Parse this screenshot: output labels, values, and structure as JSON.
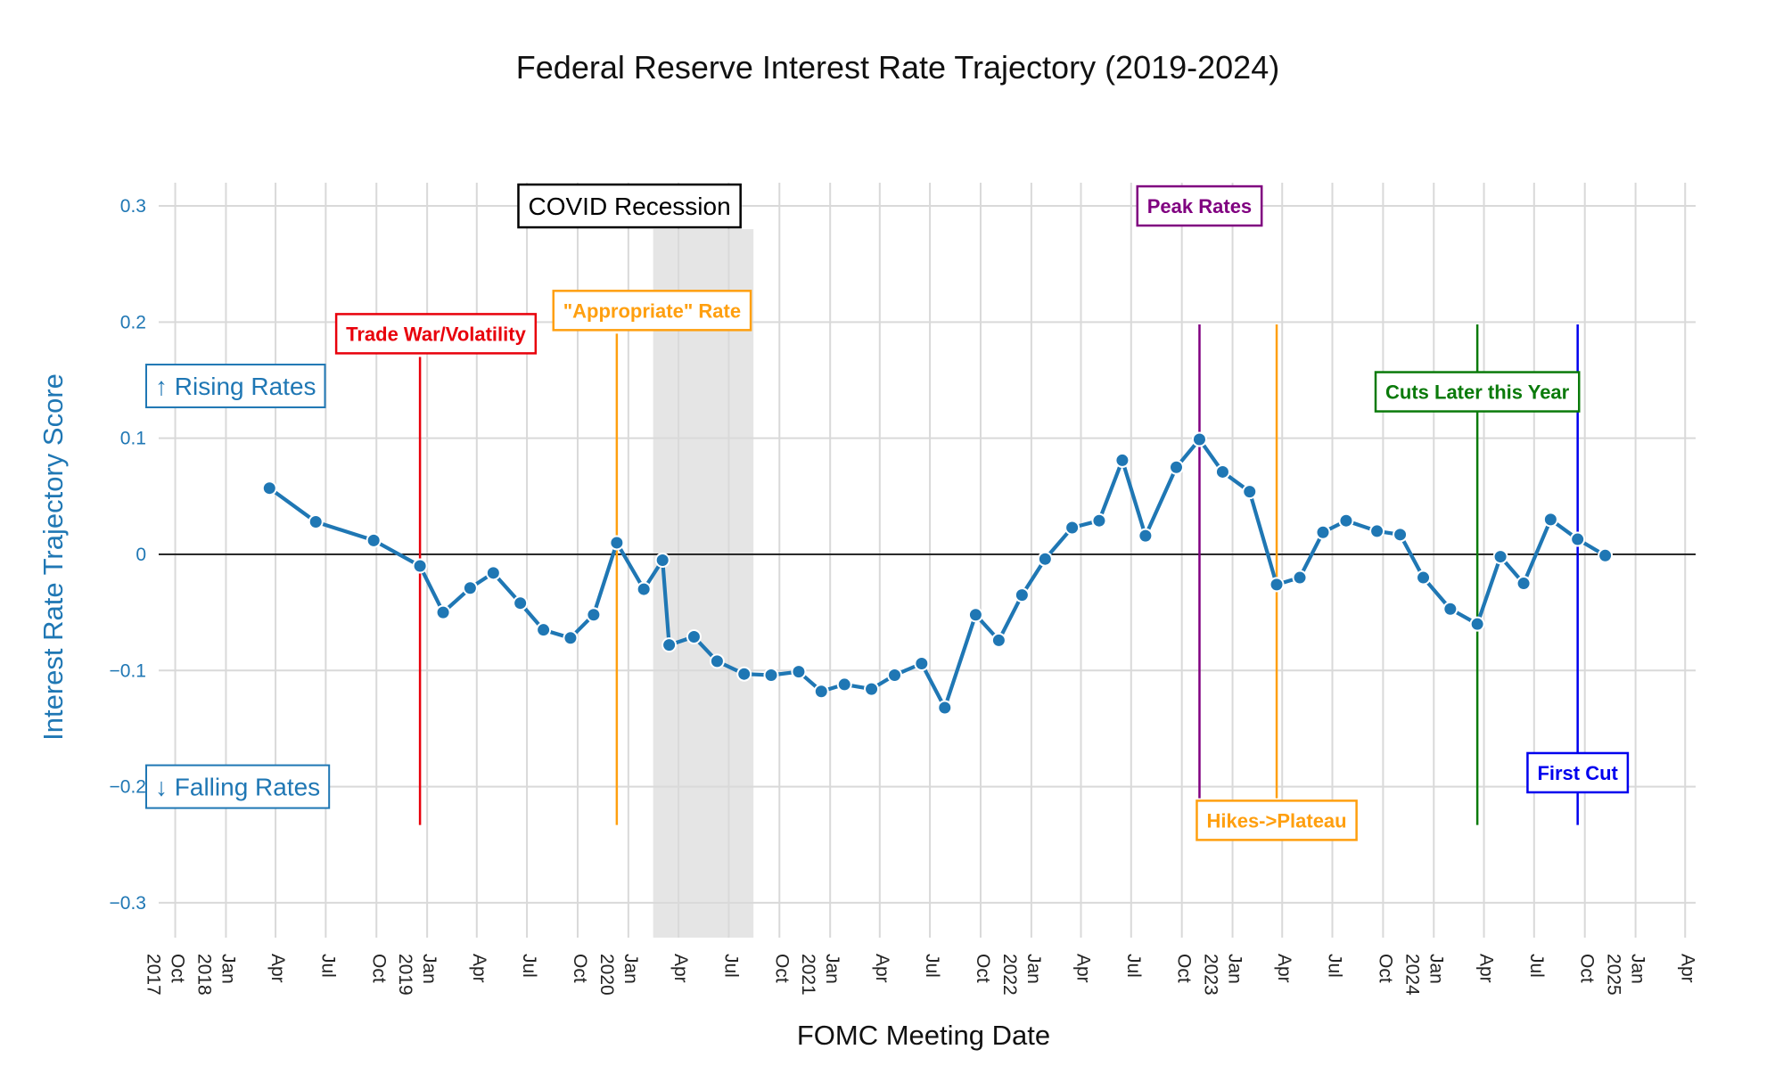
{
  "chart_data": {
    "type": "line",
    "title": "Federal Reserve Interest Rate Trajectory (2019-2024)",
    "xlabel": "FOMC Meeting Date",
    "ylabel": "Interest Rate Trajectory Score",
    "ylim": [
      -0.33,
      0.32
    ],
    "xlim": [
      "2017-09-01",
      "2025-04-20"
    ],
    "grid": true,
    "zero_line": true,
    "y_ticks": [
      {
        "v": 0.3,
        "label": "0.3"
      },
      {
        "v": 0.2,
        "label": "0.2"
      },
      {
        "v": 0.1,
        "label": "0.1"
      },
      {
        "v": 0,
        "label": "0"
      },
      {
        "v": -0.1,
        "label": "−0.1"
      },
      {
        "v": -0.2,
        "label": "−0.2"
      },
      {
        "v": -0.3,
        "label": "−0.3"
      }
    ],
    "x_ticks": [
      {
        "date": "2017-10-01",
        "label": "Oct",
        "year": "2017"
      },
      {
        "date": "2018-01-01",
        "label": "Jan",
        "year": "2018"
      },
      {
        "date": "2018-04-01",
        "label": "Apr"
      },
      {
        "date": "2018-07-01",
        "label": "Jul"
      },
      {
        "date": "2018-10-01",
        "label": "Oct"
      },
      {
        "date": "2019-01-01",
        "label": "Jan",
        "year": "2019"
      },
      {
        "date": "2019-04-01",
        "label": "Apr"
      },
      {
        "date": "2019-07-01",
        "label": "Jul"
      },
      {
        "date": "2019-10-01",
        "label": "Oct"
      },
      {
        "date": "2020-01-01",
        "label": "Jan",
        "year": "2020"
      },
      {
        "date": "2020-04-01",
        "label": "Apr"
      },
      {
        "date": "2020-07-01",
        "label": "Jul"
      },
      {
        "date": "2020-10-01",
        "label": "Oct"
      },
      {
        "date": "2021-01-01",
        "label": "Jan",
        "year": "2021"
      },
      {
        "date": "2021-04-01",
        "label": "Apr"
      },
      {
        "date": "2021-07-01",
        "label": "Jul"
      },
      {
        "date": "2021-10-01",
        "label": "Oct"
      },
      {
        "date": "2022-01-01",
        "label": "Jan",
        "year": "2022"
      },
      {
        "date": "2022-04-01",
        "label": "Apr"
      },
      {
        "date": "2022-07-01",
        "label": "Jul"
      },
      {
        "date": "2022-10-01",
        "label": "Oct"
      },
      {
        "date": "2023-01-01",
        "label": "Jan",
        "year": "2023"
      },
      {
        "date": "2023-04-01",
        "label": "Apr"
      },
      {
        "date": "2023-07-01",
        "label": "Jul"
      },
      {
        "date": "2023-10-01",
        "label": "Oct"
      },
      {
        "date": "2024-01-01",
        "label": "Jan",
        "year": "2024"
      },
      {
        "date": "2024-04-01",
        "label": "Apr"
      },
      {
        "date": "2024-07-01",
        "label": "Jul"
      },
      {
        "date": "2024-10-01",
        "label": "Oct"
      },
      {
        "date": "2025-01-01",
        "label": "Jan",
        "year": "2025"
      },
      {
        "date": "2025-04-01",
        "label": "Apr"
      }
    ],
    "series": [
      {
        "color": "#1f77b4",
        "points": [
          {
            "x": "2018-03-21",
            "y": 0.057
          },
          {
            "x": "2018-06-13",
            "y": 0.028
          },
          {
            "x": "2018-09-26",
            "y": 0.012
          },
          {
            "x": "2018-12-19",
            "y": -0.01
          },
          {
            "x": "2019-01-30",
            "y": -0.05
          },
          {
            "x": "2019-03-20",
            "y": -0.029
          },
          {
            "x": "2019-05-01",
            "y": -0.016
          },
          {
            "x": "2019-06-19",
            "y": -0.042
          },
          {
            "x": "2019-07-31",
            "y": -0.065
          },
          {
            "x": "2019-09-18",
            "y": -0.072
          },
          {
            "x": "2019-10-30",
            "y": -0.052
          },
          {
            "x": "2019-12-11",
            "y": 0.01
          },
          {
            "x": "2020-01-29",
            "y": -0.03
          },
          {
            "x": "2020-03-03",
            "y": -0.005
          },
          {
            "x": "2020-03-15",
            "y": -0.078
          },
          {
            "x": "2020-04-29",
            "y": -0.071
          },
          {
            "x": "2020-06-10",
            "y": -0.092
          },
          {
            "x": "2020-07-29",
            "y": -0.103
          },
          {
            "x": "2020-09-16",
            "y": -0.104
          },
          {
            "x": "2020-11-05",
            "y": -0.101
          },
          {
            "x": "2020-12-16",
            "y": -0.118
          },
          {
            "x": "2021-01-27",
            "y": -0.112
          },
          {
            "x": "2021-03-17",
            "y": -0.116
          },
          {
            "x": "2021-04-28",
            "y": -0.104
          },
          {
            "x": "2021-06-16",
            "y": -0.094
          },
          {
            "x": "2021-07-28",
            "y": -0.132
          },
          {
            "x": "2021-09-22",
            "y": -0.052
          },
          {
            "x": "2021-11-03",
            "y": -0.074
          },
          {
            "x": "2021-12-15",
            "y": -0.035
          },
          {
            "x": "2022-01-26",
            "y": -0.004
          },
          {
            "x": "2022-03-16",
            "y": 0.023
          },
          {
            "x": "2022-05-04",
            "y": 0.029
          },
          {
            "x": "2022-06-15",
            "y": 0.081
          },
          {
            "x": "2022-07-27",
            "y": 0.016
          },
          {
            "x": "2022-09-21",
            "y": 0.075
          },
          {
            "x": "2022-11-02",
            "y": 0.099
          },
          {
            "x": "2022-12-14",
            "y": 0.071
          },
          {
            "x": "2023-02-01",
            "y": 0.054
          },
          {
            "x": "2023-03-22",
            "y": -0.026
          },
          {
            "x": "2023-05-03",
            "y": -0.02
          },
          {
            "x": "2023-06-14",
            "y": 0.019
          },
          {
            "x": "2023-07-26",
            "y": 0.029
          },
          {
            "x": "2023-09-20",
            "y": 0.02
          },
          {
            "x": "2023-11-01",
            "y": 0.017
          },
          {
            "x": "2023-12-13",
            "y": -0.02
          },
          {
            "x": "2024-01-31",
            "y": -0.047
          },
          {
            "x": "2024-03-20",
            "y": -0.06
          },
          {
            "x": "2024-05-01",
            "y": -0.002
          },
          {
            "x": "2024-06-12",
            "y": -0.025
          },
          {
            "x": "2024-07-31",
            "y": 0.03
          },
          {
            "x": "2024-09-18",
            "y": 0.013
          },
          {
            "x": "2024-11-07",
            "y": -0.001
          }
        ]
      }
    ],
    "shaded_regions": [
      {
        "x0": "2020-02-15",
        "x1": "2020-08-15",
        "y0": -0.33,
        "y1": 0.28,
        "color": "#e5e5e5"
      }
    ],
    "annotations": [
      {
        "id": "trade-war",
        "text": "Trade War/Volatility",
        "color": "#e8000b",
        "date": "2018-12-19",
        "line_top": 0.17,
        "line_bottom": -0.233,
        "label_y": 0.19,
        "box_left_date": "2018-07-20"
      },
      {
        "id": "appropriate-rate",
        "text": "\"Appropriate\" Rate",
        "color": "#ff9f0f",
        "date": "2019-12-11",
        "line_top": 0.19,
        "line_bottom": -0.233,
        "label_y": 0.21,
        "box_left_date": "2019-08-18"
      },
      {
        "id": "covid-recession",
        "text": "COVID Recession",
        "color": "#000000",
        "bold": false,
        "label_y": 0.3,
        "box_center_date": "2020-01-03"
      },
      {
        "id": "peak-rates",
        "text": "Peak Rates",
        "color": "#800080",
        "date": "2022-11-02",
        "line_top": 0.198,
        "line_bottom": -0.21,
        "label_y": 0.3,
        "box_center_date": "2022-11-02"
      },
      {
        "id": "hikes-plateau",
        "text": "Hikes->Plateau",
        "color": "#ff9f0f",
        "date": "2023-03-22",
        "line_top": 0.198,
        "line_bottom": -0.21,
        "label_y": -0.229,
        "box_center_date": "2023-03-22"
      },
      {
        "id": "cuts-later",
        "text": "Cuts Later this Year",
        "color": "#0a7a0a",
        "date": "2024-03-20",
        "line_top": 0.198,
        "line_bottom": -0.233,
        "label_y": 0.14,
        "box_center_date": "2024-03-20"
      },
      {
        "id": "first-cut",
        "text": "First Cut",
        "color": "#0000ee",
        "date": "2024-09-18",
        "line_top": 0.198,
        "line_bottom": -0.233,
        "label_y": -0.188,
        "box_center_date": "2024-09-18"
      }
    ],
    "side_labels": [
      {
        "id": "rising",
        "text": "↑ Rising Rates",
        "y": 0.145
      },
      {
        "id": "falling",
        "text": "↓ Falling Rates",
        "y": -0.2
      }
    ]
  }
}
